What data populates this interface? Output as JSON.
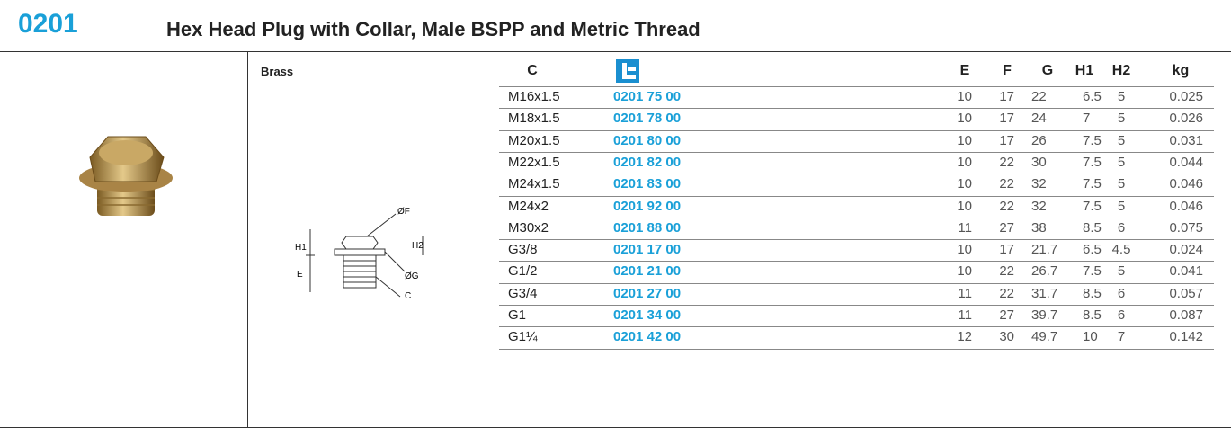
{
  "header": {
    "code": "0201",
    "title": "Hex Head Plug with Collar, Male BSPP and Metric Thread"
  },
  "material": "Brass",
  "diagram": {
    "labels": {
      "f": "ØF",
      "h1": "H1",
      "h2": "H2",
      "e": "E",
      "g": "ØG",
      "c": "C"
    }
  },
  "table": {
    "columns": [
      "C",
      "E",
      "F",
      "G",
      "H1",
      "H2",
      "kg"
    ],
    "rows": [
      [
        "M16x1.5",
        "0201 75 00",
        "10",
        "17",
        "22",
        "6.5",
        "5",
        "0.025"
      ],
      [
        "M18x1.5",
        "0201 78 00",
        "10",
        "17",
        "24",
        "7",
        "5",
        "0.026"
      ],
      [
        "M20x1.5",
        "0201 80 00",
        "10",
        "17",
        "26",
        "7.5",
        "5",
        "0.031"
      ],
      [
        "M22x1.5",
        "0201 82 00",
        "10",
        "22",
        "30",
        "7.5",
        "5",
        "0.044"
      ],
      [
        "M24x1.5",
        "0201 83 00",
        "10",
        "22",
        "32",
        "7.5",
        "5",
        "0.046"
      ],
      [
        "M24x2",
        "0201 92 00",
        "10",
        "22",
        "32",
        "7.5",
        "5",
        "0.046"
      ],
      [
        "M30x2",
        "0201 88 00",
        "11",
        "27",
        "38",
        "8.5",
        "6",
        "0.075"
      ],
      [
        "G3/8",
        "0201 17 00",
        "10",
        "17",
        "21.7",
        "6.5",
        "4.5",
        "0.024"
      ],
      [
        "G1/2",
        "0201 21 00",
        "10",
        "22",
        "26.7",
        "7.5",
        "5",
        "0.041"
      ],
      [
        "G3/4",
        "0201 27 00",
        "11",
        "22",
        "31.7",
        "8.5",
        "6",
        "0.057"
      ],
      [
        "G1",
        "0201 34 00",
        "11",
        "27",
        "39.7",
        "8.5",
        "6",
        "0.087"
      ],
      [
        "G1¼",
        "0201 42 00",
        "12",
        "30",
        "49.7",
        "10",
        "7",
        "0.142"
      ]
    ]
  }
}
